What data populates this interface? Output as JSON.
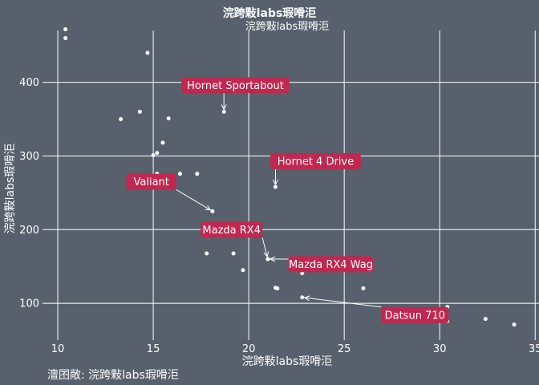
{
  "colors": {
    "background": "#57606c",
    "grid": "#ffffff",
    "text": "#ffffff",
    "point": "#ffffff",
    "label_fill": "#c1284f",
    "label_text": "#ffffff"
  },
  "chart_data": {
    "type": "scatter",
    "title": "浣跨敤labs瑕嗗洰",
    "subtitle": "浣跨敤labs瑕嗗洰",
    "xlabel": "浣跨敤labs瑕嗗洰",
    "ylabel": "浣跨敤labs瑕嗗洰",
    "caption": "澶囨敞: 浣跨敤labs瑕嗗洰",
    "xlim": [
      9.2,
      35.2
    ],
    "ylim": [
      50,
      490
    ],
    "xticks": [
      10,
      15,
      20,
      25,
      30,
      35
    ],
    "yticks": [
      100,
      200,
      300,
      400
    ],
    "grid": true,
    "points": [
      {
        "x": 21.0,
        "y": 160
      },
      {
        "x": 21.0,
        "y": 160
      },
      {
        "x": 22.8,
        "y": 108
      },
      {
        "x": 21.4,
        "y": 258
      },
      {
        "x": 18.7,
        "y": 360
      },
      {
        "x": 18.1,
        "y": 225
      },
      {
        "x": 14.3,
        "y": 360
      },
      {
        "x": 24.4,
        "y": 146.7
      },
      {
        "x": 22.8,
        "y": 140.8
      },
      {
        "x": 19.2,
        "y": 167.6
      },
      {
        "x": 17.8,
        "y": 167.6
      },
      {
        "x": 16.4,
        "y": 275.8
      },
      {
        "x": 17.3,
        "y": 275.8
      },
      {
        "x": 15.2,
        "y": 275.8
      },
      {
        "x": 10.4,
        "y": 472
      },
      {
        "x": 10.4,
        "y": 460
      },
      {
        "x": 14.7,
        "y": 440
      },
      {
        "x": 32.4,
        "y": 78.7
      },
      {
        "x": 30.4,
        "y": 75.7
      },
      {
        "x": 33.9,
        "y": 71.1
      },
      {
        "x": 21.5,
        "y": 120.1
      },
      {
        "x": 15.5,
        "y": 318
      },
      {
        "x": 15.2,
        "y": 304
      },
      {
        "x": 13.3,
        "y": 350
      },
      {
        "x": 19.2,
        "y": 400
      },
      {
        "x": 27.3,
        "y": 79
      },
      {
        "x": 26.0,
        "y": 120.3
      },
      {
        "x": 30.4,
        "y": 95.1
      },
      {
        "x": 15.8,
        "y": 351
      },
      {
        "x": 19.7,
        "y": 145
      },
      {
        "x": 15.0,
        "y": 301
      },
      {
        "x": 21.4,
        "y": 121
      }
    ],
    "annotations": [
      {
        "text": "Mazda RX4",
        "x": 21.0,
        "y": 160,
        "lx": 19.1,
        "ly": 200
      },
      {
        "text": "Mazda RX4 Wag",
        "x": 21.0,
        "y": 160,
        "lx": 24.3,
        "ly": 153
      },
      {
        "text": "Datsun 710",
        "x": 22.8,
        "y": 108,
        "lx": 28.7,
        "ly": 84
      },
      {
        "text": "Hornet 4 Drive",
        "x": 21.4,
        "y": 258,
        "lx": 23.5,
        "ly": 293
      },
      {
        "text": "Hornet Sportabout",
        "x": 18.7,
        "y": 360,
        "lx": 19.3,
        "ly": 396
      },
      {
        "text": "Valiant",
        "x": 18.1,
        "y": 225,
        "lx": 14.9,
        "ly": 265
      }
    ]
  }
}
